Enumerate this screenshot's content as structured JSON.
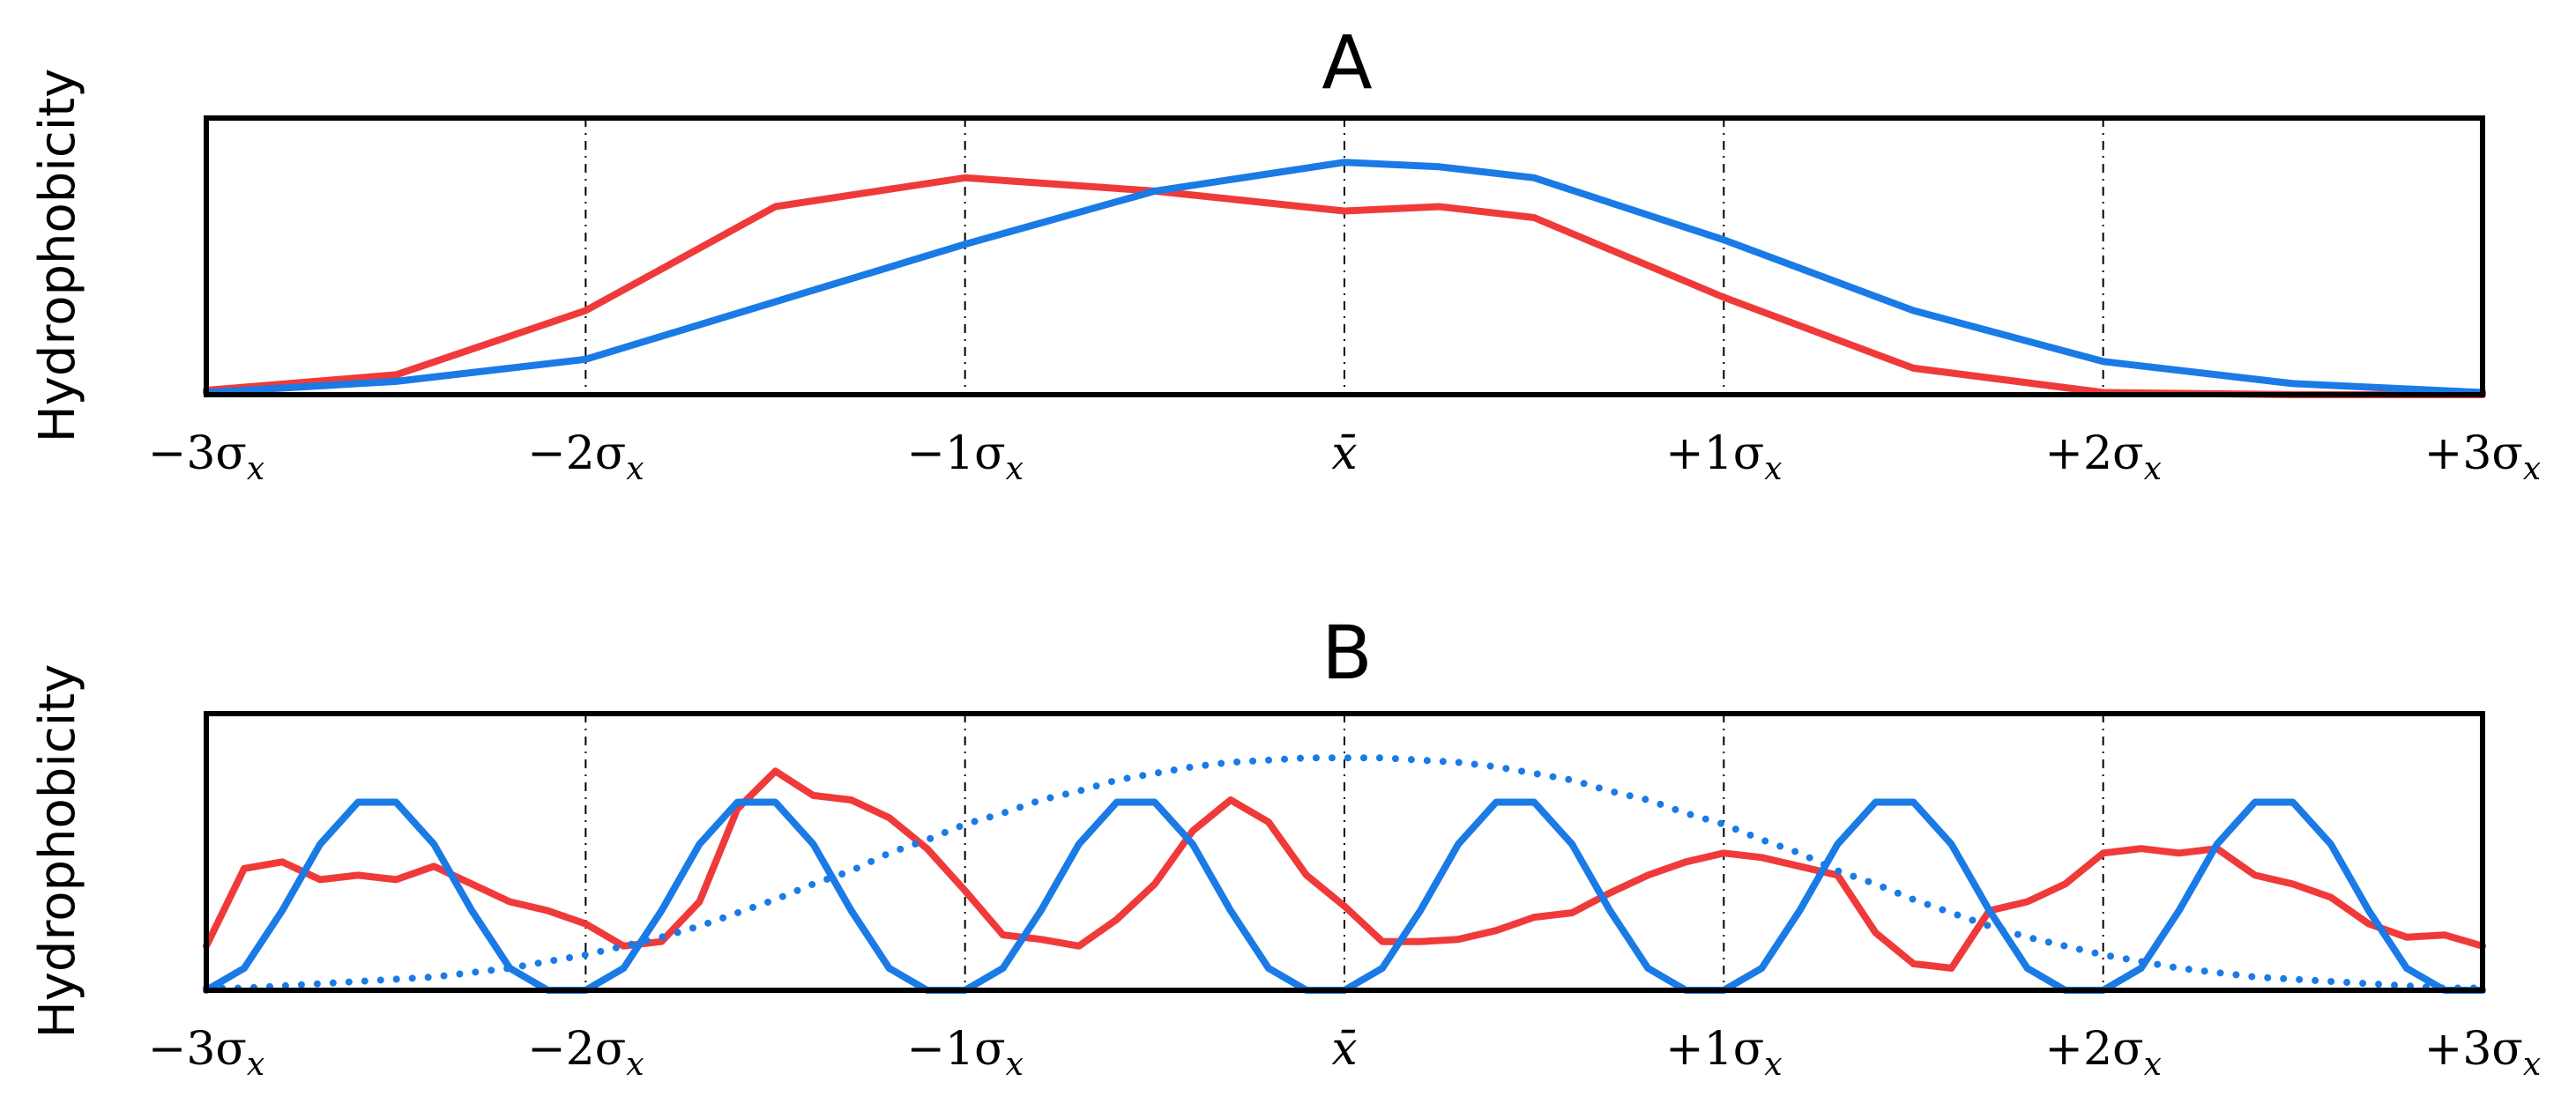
{
  "chart_data": [
    {
      "type": "line",
      "title": "A",
      "ylabel": "Hydrophobicity",
      "xlabel": "",
      "x_unit": "sigma_x",
      "xlim": [
        -3,
        3
      ],
      "ylim": [
        0,
        1.25
      ],
      "grid": true,
      "tick_labels": [
        "−3σx",
        "−2σx",
        "−1σx",
        "x̄",
        "+1σx",
        "+2σx",
        "+3σx"
      ],
      "colors": {
        "red": "#f03a3a",
        "blue": "#1a7ae6"
      },
      "x": [
        -3,
        -2.5,
        -2,
        -1.5,
        -1,
        -0.5,
        0,
        0.25,
        0.5,
        1,
        1.5,
        2,
        2.5,
        3
      ],
      "series": [
        {
          "color": "#f03a3a",
          "values": [
            0.02,
            0.09,
            0.38,
            0.85,
            0.98,
            0.92,
            0.83,
            0.85,
            0.8,
            0.44,
            0.12,
            0.01,
            0.0,
            0.0
          ]
        },
        {
          "color": "#1a7ae6",
          "values": [
            0.01,
            0.06,
            0.16,
            0.42,
            0.68,
            0.92,
            1.05,
            1.03,
            0.98,
            0.7,
            0.38,
            0.15,
            0.05,
            0.01
          ]
        }
      ]
    },
    {
      "type": "line",
      "title": "B",
      "ylabel": "Hydrophobicity",
      "xlabel": "",
      "x_unit": "sigma_x",
      "xlim": [
        -3,
        3
      ],
      "ylim": [
        0,
        1.25
      ],
      "grid": true,
      "tick_labels": [
        "−3σx",
        "−2σx",
        "−1σx",
        "x̄",
        "+1σx",
        "+2σx",
        "+3σx"
      ],
      "colors": {
        "red": "#f03a3a",
        "blue": "#1a7ae6"
      },
      "x": [
        -3,
        -2.9,
        -2.8,
        -2.7,
        -2.6,
        -2.5,
        -2.4,
        -2.3,
        -2.2,
        -2.1,
        -2,
        -1.9,
        -1.8,
        -1.7,
        -1.6,
        -1.5,
        -1.4,
        -1.3,
        -1.2,
        -1.1,
        -1,
        -0.9,
        -0.8,
        -0.7,
        -0.6,
        -0.5,
        -0.4,
        -0.3,
        -0.2,
        -0.1,
        0,
        0.1,
        0.2,
        0.3,
        0.4,
        0.5,
        0.6,
        0.7,
        0.8,
        0.9,
        1,
        1.1,
        1.2,
        1.3,
        1.4,
        1.5,
        1.6,
        1.7,
        1.8,
        1.9,
        2,
        2.1,
        2.2,
        2.3,
        2.4,
        2.5,
        2.6,
        2.7,
        2.8,
        2.9,
        3
      ],
      "series": [
        {
          "color": "#f03a3a",
          "style": "solid",
          "values": [
            0.2,
            0.55,
            0.58,
            0.5,
            0.52,
            0.5,
            0.56,
            0.48,
            0.4,
            0.36,
            0.3,
            0.2,
            0.22,
            0.4,
            0.82,
            0.99,
            0.88,
            0.86,
            0.78,
            0.64,
            0.45,
            0.25,
            0.23,
            0.2,
            0.32,
            0.48,
            0.72,
            0.86,
            0.76,
            0.52,
            0.38,
            0.22,
            0.22,
            0.23,
            0.27,
            0.33,
            0.35,
            0.44,
            0.52,
            0.58,
            0.62,
            0.6,
            0.56,
            0.52,
            0.26,
            0.12,
            0.1,
            0.36,
            0.4,
            0.48,
            0.62,
            0.64,
            0.62,
            0.64,
            0.52,
            0.48,
            0.42,
            0.3,
            0.24,
            0.25,
            0.2
          ]
        },
        {
          "color": "#1a7ae6",
          "style": "solid",
          "values": [
            0.0,
            0.1,
            0.36,
            0.66,
            0.85,
            0.85,
            0.66,
            0.36,
            0.1,
            0.0,
            0.0,
            0.1,
            0.36,
            0.66,
            0.85,
            0.85,
            0.66,
            0.36,
            0.1,
            0.0,
            0.0,
            0.1,
            0.36,
            0.66,
            0.85,
            0.85,
            0.66,
            0.36,
            0.1,
            0.0,
            0.0,
            0.1,
            0.36,
            0.66,
            0.85,
            0.85,
            0.66,
            0.36,
            0.1,
            0.0,
            0.0,
            0.1,
            0.36,
            0.66,
            0.85,
            0.85,
            0.66,
            0.36,
            0.1,
            0.0,
            0.0,
            0.1,
            0.36,
            0.66,
            0.85,
            0.85,
            0.66,
            0.36,
            0.1,
            0.0,
            0.0
          ]
        },
        {
          "color": "#1a7ae6",
          "style": "dotted",
          "values": [
            0.01,
            0.01,
            0.02,
            0.03,
            0.04,
            0.05,
            0.06,
            0.08,
            0.1,
            0.13,
            0.16,
            0.2,
            0.24,
            0.29,
            0.35,
            0.41,
            0.48,
            0.54,
            0.62,
            0.68,
            0.75,
            0.8,
            0.86,
            0.9,
            0.95,
            0.98,
            1.01,
            1.03,
            1.04,
            1.05,
            1.05,
            1.05,
            1.04,
            1.03,
            1.01,
            0.98,
            0.95,
            0.9,
            0.86,
            0.8,
            0.75,
            0.68,
            0.62,
            0.54,
            0.48,
            0.41,
            0.35,
            0.29,
            0.24,
            0.2,
            0.16,
            0.13,
            0.1,
            0.08,
            0.06,
            0.05,
            0.04,
            0.03,
            0.02,
            0.01,
            0.01
          ]
        }
      ]
    }
  ]
}
